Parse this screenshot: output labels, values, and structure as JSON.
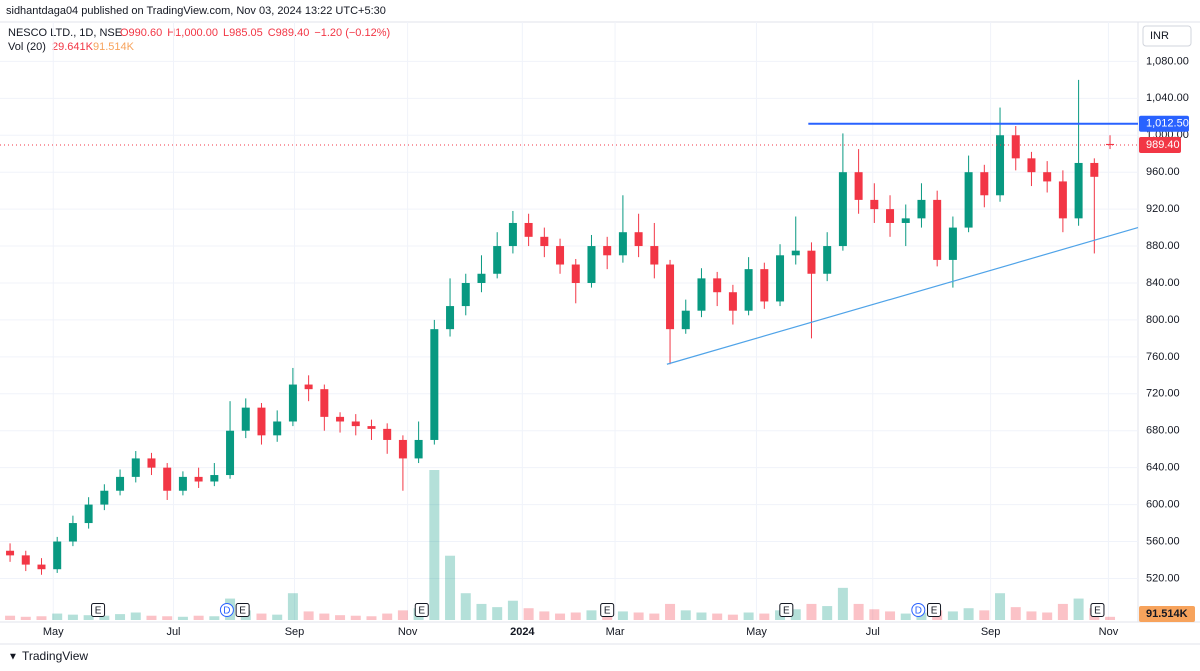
{
  "header": {
    "publisher": "sidhantdaga04 published on TradingView.com, Nov 03, 2024 13:22 UTC+5:30",
    "currency": "INR",
    "brand": "TradingView"
  },
  "legend": {
    "symbol": "NESCO LTD., 1D, NSE",
    "ohlc": [
      "O990.60",
      "H1,000.00",
      "L985.05",
      "C989.40",
      "−1.20 (−0.12%)"
    ],
    "volume_title": "Vol (20)",
    "volume_last": "29.641K",
    "volume_ma": "91.514K"
  },
  "chart_data": {
    "type": "candlestick",
    "up_color": "#089981",
    "down_color": "#f23645",
    "open": [
      550,
      545,
      535,
      530,
      560,
      580,
      600,
      615,
      630,
      650,
      640,
      615,
      630,
      625,
      632,
      680,
      705,
      675,
      690,
      730,
      725,
      695,
      690,
      685,
      682,
      670,
      650,
      670,
      790,
      815,
      840,
      850,
      880,
      905,
      890,
      880,
      860,
      840,
      880,
      870,
      895,
      880,
      860,
      790,
      810,
      845,
      830,
      810,
      855,
      820,
      870,
      875,
      850,
      880,
      960,
      930,
      920,
      905,
      910,
      930,
      865,
      900,
      960,
      935,
      1000,
      975,
      960,
      950,
      910,
      970,
      990.6
    ],
    "high": [
      558,
      550,
      542,
      565,
      588,
      608,
      622,
      638,
      658,
      656,
      645,
      636,
      640,
      645,
      712,
      715,
      710,
      702,
      748,
      740,
      730,
      700,
      698,
      692,
      688,
      675,
      690,
      800,
      845,
      850,
      870,
      895,
      918,
      915,
      900,
      888,
      866,
      892,
      890,
      935,
      915,
      905,
      865,
      822,
      856,
      852,
      838,
      868,
      862,
      882,
      912,
      884,
      895,
      1002,
      985,
      948,
      935,
      925,
      948,
      940,
      912,
      978,
      968,
      1030,
      1010,
      982,
      972,
      962,
      1060,
      975,
      1000
    ],
    "low": [
      538,
      528,
      524,
      526,
      555,
      574,
      594,
      610,
      624,
      632,
      605,
      610,
      618,
      620,
      628,
      672,
      665,
      668,
      685,
      712,
      680,
      678,
      675,
      670,
      655,
      615,
      645,
      665,
      782,
      805,
      830,
      845,
      872,
      880,
      868,
      850,
      818,
      835,
      855,
      862,
      868,
      845,
      752,
      785,
      803,
      815,
      795,
      805,
      812,
      815,
      860,
      780,
      842,
      875,
      915,
      905,
      890,
      880,
      900,
      858,
      835,
      895,
      922,
      928,
      962,
      945,
      938,
      895,
      902,
      872,
      985.05
    ],
    "close": [
      545,
      535,
      530,
      560,
      580,
      600,
      615,
      630,
      650,
      640,
      615,
      630,
      625,
      632,
      680,
      705,
      675,
      690,
      730,
      725,
      695,
      690,
      685,
      682,
      670,
      650,
      670,
      790,
      815,
      840,
      850,
      880,
      905,
      890,
      880,
      860,
      840,
      880,
      870,
      895,
      880,
      860,
      790,
      810,
      845,
      830,
      810,
      855,
      820,
      870,
      875,
      850,
      880,
      960,
      930,
      920,
      905,
      910,
      930,
      865,
      900,
      960,
      935,
      1000,
      975,
      960,
      950,
      910,
      970,
      955,
      989.4
    ],
    "volume": [
      40000,
      30000,
      35000,
      60000,
      50000,
      45000,
      40000,
      55000,
      70000,
      40000,
      35000,
      30000,
      40000,
      35000,
      200000,
      90000,
      60000,
      50000,
      250000,
      80000,
      60000,
      45000,
      40000,
      35000,
      60000,
      90000,
      110000,
      1400000,
      600000,
      250000,
      150000,
      120000,
      180000,
      110000,
      80000,
      60000,
      70000,
      90000,
      60000,
      80000,
      70000,
      60000,
      150000,
      90000,
      70000,
      60000,
      50000,
      70000,
      60000,
      90000,
      100000,
      150000,
      130000,
      300000,
      150000,
      100000,
      80000,
      60000,
      70000,
      90000,
      80000,
      110000,
      90000,
      250000,
      120000,
      80000,
      70000,
      150000,
      200000,
      110000,
      29641
    ],
    "xlim": [
      -0.64,
      71.78
    ],
    "xticks": [
      {
        "value": 2.75,
        "label": "May"
      },
      {
        "value": 10.4,
        "label": "Jul"
      },
      {
        "value": 18.1,
        "label": "Sep"
      },
      {
        "value": 25.3,
        "label": "Nov"
      },
      {
        "value": 32.6,
        "label": "2024"
      },
      {
        "value": 38.5,
        "label": "Mar"
      },
      {
        "value": 47.5,
        "label": "May"
      },
      {
        "value": 54.9,
        "label": "Jul"
      },
      {
        "value": 62.4,
        "label": "Sep"
      },
      {
        "value": 69.9,
        "label": "Nov"
      }
    ],
    "ylim": [
      475,
      1114
    ],
    "yticks": [
      {
        "value": 520,
        "label": "520.00"
      },
      {
        "value": 560,
        "label": "560.00"
      },
      {
        "value": 600,
        "label": "600.00"
      },
      {
        "value": 640,
        "label": "640.00"
      },
      {
        "value": 680,
        "label": "680.00"
      },
      {
        "value": 720,
        "label": "720.00"
      },
      {
        "value": 760,
        "label": "760.00"
      },
      {
        "value": 800,
        "label": "800.00"
      },
      {
        "value": 840,
        "label": "840.00"
      },
      {
        "value": 880,
        "label": "880.00"
      },
      {
        "value": 920,
        "label": "920.00"
      },
      {
        "value": 960,
        "label": "960.00"
      },
      {
        "value": 1000,
        "label": "1,000.00"
      },
      {
        "value": 1040,
        "label": "1,040.00"
      },
      {
        "value": 1080,
        "label": "1,080.00"
      }
    ],
    "grid": true,
    "hline": {
      "value": 1012.5,
      "label": "1,012.50",
      "start": 50.8,
      "color": "#2962ff"
    },
    "trendline": {
      "x": [
        41.8,
        71.78
      ],
      "y": [
        752,
        900
      ],
      "color": "#4fa3e8"
    },
    "last_price": {
      "value": 989.4,
      "label": "989.40"
    },
    "events": [
      {
        "x": 5.6,
        "label": "E"
      },
      {
        "x": 13.8,
        "label": "D"
      },
      {
        "x": 14.8,
        "label": "E"
      },
      {
        "x": 26.2,
        "label": "E"
      },
      {
        "x": 38.0,
        "label": "E"
      },
      {
        "x": 49.4,
        "label": "E"
      },
      {
        "x": 57.8,
        "label": "D"
      },
      {
        "x": 58.8,
        "label": "E"
      },
      {
        "x": 69.2,
        "label": "E"
      }
    ]
  }
}
